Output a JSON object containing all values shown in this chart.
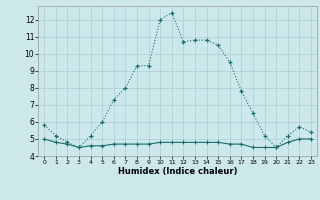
{
  "title": "",
  "xlabel": "Humidex (Indice chaleur)",
  "background_color": "#cce8ea",
  "grid_color": "#aacfd2",
  "line_color": "#1a6b6b",
  "line1_x": [
    0,
    1,
    2,
    3,
    4,
    5,
    6,
    7,
    8,
    9,
    10,
    11,
    12,
    13,
    14,
    15,
    16,
    17,
    18,
    19,
    20,
    21,
    22,
    23
  ],
  "line1_y": [
    5.8,
    5.2,
    4.8,
    4.5,
    5.2,
    6.0,
    7.3,
    8.0,
    9.3,
    9.3,
    12.0,
    12.4,
    10.7,
    10.8,
    10.8,
    10.5,
    9.5,
    7.8,
    6.5,
    5.2,
    4.5,
    5.2,
    5.7,
    5.4
  ],
  "line2_x": [
    0,
    1,
    2,
    3,
    4,
    5,
    6,
    7,
    8,
    9,
    10,
    11,
    12,
    13,
    14,
    15,
    16,
    17,
    18,
    19,
    20,
    21,
    22,
    23
  ],
  "line2_y": [
    5.0,
    4.8,
    4.7,
    4.5,
    4.6,
    4.6,
    4.7,
    4.7,
    4.7,
    4.7,
    4.8,
    4.8,
    4.8,
    4.8,
    4.8,
    4.8,
    4.7,
    4.7,
    4.5,
    4.5,
    4.5,
    4.8,
    5.0,
    5.0
  ],
  "ylim": [
    4,
    12.8
  ],
  "xlim": [
    -0.5,
    23.5
  ],
  "yticks": [
    4,
    5,
    6,
    7,
    8,
    9,
    10,
    11,
    12
  ],
  "xticks": [
    0,
    1,
    2,
    3,
    4,
    5,
    6,
    7,
    8,
    9,
    10,
    11,
    12,
    13,
    14,
    15,
    16,
    17,
    18,
    19,
    20,
    21,
    22,
    23
  ],
  "figsize": [
    3.2,
    2.0
  ],
  "dpi": 100
}
